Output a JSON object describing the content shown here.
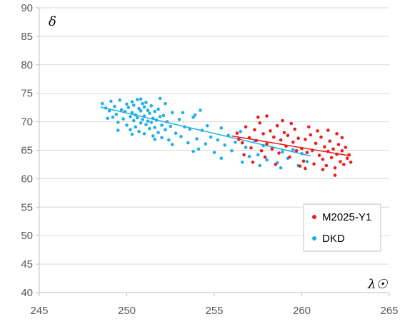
{
  "chart_data": {
    "type": "scatter",
    "xlabel": "λ☉",
    "ylabel": "δ",
    "xlim": [
      245,
      265
    ],
    "ylim": [
      40,
      90
    ],
    "x_ticks": [
      245,
      250,
      255,
      260,
      265
    ],
    "y_ticks": [
      40,
      45,
      50,
      55,
      60,
      65,
      70,
      75,
      80,
      85,
      90
    ],
    "grid": "horizontal",
    "legend": "bottom-right",
    "series": [
      {
        "name": "DKD",
        "color": "#1EAEEA",
        "trend": [
          [
            248.5,
            72.6
          ],
          [
            260.5,
            64.0
          ]
        ],
        "points": [
          [
            248.6,
            73.2
          ],
          [
            248.8,
            72.4
          ],
          [
            249.0,
            71.9
          ],
          [
            249.1,
            73.6
          ],
          [
            249.2,
            70.8
          ],
          [
            249.3,
            72.7
          ],
          [
            249.4,
            71.3
          ],
          [
            249.5,
            69.9
          ],
          [
            249.6,
            73.8
          ],
          [
            249.7,
            72.1
          ],
          [
            249.8,
            70.5
          ],
          [
            249.9,
            71.8
          ],
          [
            250.0,
            73.1
          ],
          [
            250.0,
            69.4
          ],
          [
            250.1,
            72.5
          ],
          [
            250.2,
            70.9
          ],
          [
            250.2,
            68.6
          ],
          [
            250.3,
            73.5
          ],
          [
            250.3,
            71.6
          ],
          [
            250.4,
            70.2
          ],
          [
            250.4,
            72.9
          ],
          [
            250.5,
            69.1
          ],
          [
            250.5,
            71.2
          ],
          [
            250.6,
            73.9
          ],
          [
            250.6,
            70.7
          ],
          [
            250.7,
            72.3
          ],
          [
            250.7,
            68.3
          ],
          [
            250.8,
            71.9
          ],
          [
            250.8,
            69.8
          ],
          [
            250.9,
            73.2
          ],
          [
            250.9,
            70.4
          ],
          [
            251.0,
            72.6
          ],
          [
            251.0,
            67.9
          ],
          [
            251.0,
            71.0
          ],
          [
            251.1,
            69.5
          ],
          [
            251.1,
            73.4
          ],
          [
            251.2,
            70.1
          ],
          [
            251.2,
            72.0
          ],
          [
            251.3,
            68.8
          ],
          [
            251.3,
            71.5
          ],
          [
            251.4,
            69.9
          ],
          [
            251.4,
            72.8
          ],
          [
            251.5,
            67.5
          ],
          [
            251.5,
            70.6
          ],
          [
            251.6,
            71.8
          ],
          [
            251.6,
            69.0
          ],
          [
            251.7,
            70.3
          ],
          [
            251.8,
            72.2
          ],
          [
            251.8,
            68.1
          ],
          [
            251.9,
            70.9
          ],
          [
            252.0,
            69.4
          ],
          [
            252.0,
            67.2
          ],
          [
            252.1,
            71.1
          ],
          [
            252.2,
            68.6
          ],
          [
            252.3,
            70.0
          ],
          [
            252.4,
            66.8
          ],
          [
            252.5,
            69.2
          ],
          [
            252.6,
            71.6
          ],
          [
            252.8,
            68.0
          ],
          [
            253.0,
            70.4
          ],
          [
            253.1,
            67.4
          ],
          [
            253.3,
            69.1
          ],
          [
            253.5,
            66.3
          ],
          [
            253.6,
            68.7
          ],
          [
            253.8,
            70.8
          ],
          [
            254.0,
            67.0
          ],
          [
            254.1,
            65.2
          ],
          [
            254.3,
            68.5
          ],
          [
            254.5,
            66.1
          ],
          [
            254.6,
            69.3
          ],
          [
            254.8,
            67.3
          ],
          [
            255.0,
            64.6
          ],
          [
            255.2,
            66.8
          ],
          [
            255.4,
            68.9
          ],
          [
            255.6,
            65.9
          ],
          [
            255.8,
            67.6
          ],
          [
            256.0,
            64.9
          ],
          [
            256.2,
            66.4
          ],
          [
            256.5,
            68.3
          ],
          [
            256.8,
            65.5
          ],
          [
            257.0,
            63.9
          ],
          [
            257.3,
            66.7
          ],
          [
            257.5,
            64.2
          ],
          [
            257.8,
            65.8
          ],
          [
            258.0,
            63.3
          ],
          [
            258.3,
            65.4
          ],
          [
            258.6,
            62.8
          ],
          [
            258.9,
            64.7
          ],
          [
            259.2,
            63.6
          ],
          [
            259.5,
            65.1
          ],
          [
            259.8,
            62.3
          ],
          [
            260.0,
            64.4
          ],
          [
            260.3,
            63.0
          ],
          [
            260.6,
            64.9
          ],
          [
            249.5,
            68.5
          ],
          [
            250.8,
            74.0
          ],
          [
            252.2,
            73.2
          ],
          [
            253.2,
            71.6
          ],
          [
            254.2,
            72.0
          ],
          [
            255.4,
            63.6
          ],
          [
            256.6,
            62.9
          ],
          [
            257.6,
            62.3
          ],
          [
            258.8,
            61.9
          ],
          [
            250.3,
            67.8
          ],
          [
            251.6,
            66.9
          ],
          [
            252.6,
            66.0
          ],
          [
            253.8,
            64.8
          ],
          [
            248.9,
            70.6
          ],
          [
            251.9,
            74.1
          ],
          [
            253.9,
            71.2
          ]
        ]
      },
      {
        "name": "M2025-Y1",
        "color": "#EE1C1C",
        "trend": [
          [
            256.0,
            67.5
          ],
          [
            262.8,
            64.0
          ]
        ],
        "points": [
          [
            256.3,
            68.0
          ],
          [
            256.6,
            66.3
          ],
          [
            256.8,
            69.1
          ],
          [
            257.0,
            67.2
          ],
          [
            257.1,
            65.4
          ],
          [
            257.3,
            68.6
          ],
          [
            257.4,
            66.7
          ],
          [
            257.6,
            69.8
          ],
          [
            257.7,
            64.9
          ],
          [
            257.8,
            67.9
          ],
          [
            258.0,
            66.1
          ],
          [
            258.0,
            71.0
          ],
          [
            258.2,
            68.4
          ],
          [
            258.3,
            65.2
          ],
          [
            258.4,
            67.3
          ],
          [
            258.6,
            69.3
          ],
          [
            258.7,
            64.5
          ],
          [
            258.8,
            66.8
          ],
          [
            259.0,
            68.1
          ],
          [
            259.1,
            65.7
          ],
          [
            259.2,
            67.6
          ],
          [
            259.3,
            63.8
          ],
          [
            259.5,
            66.4
          ],
          [
            259.6,
            68.7
          ],
          [
            259.7,
            64.9
          ],
          [
            259.8,
            67.1
          ],
          [
            260.0,
            65.3
          ],
          [
            260.1,
            63.1
          ],
          [
            260.2,
            66.9
          ],
          [
            260.3,
            64.6
          ],
          [
            260.5,
            67.7
          ],
          [
            260.6,
            65.0
          ],
          [
            260.7,
            62.6
          ],
          [
            260.8,
            66.2
          ],
          [
            261.0,
            64.1
          ],
          [
            261.1,
            67.3
          ],
          [
            261.2,
            63.4
          ],
          [
            261.3,
            65.6
          ],
          [
            261.4,
            62.3
          ],
          [
            261.5,
            64.8
          ],
          [
            261.6,
            66.6
          ],
          [
            261.7,
            63.7
          ],
          [
            261.8,
            65.2
          ],
          [
            261.9,
            61.9
          ],
          [
            262.0,
            64.3
          ],
          [
            262.1,
            66.0
          ],
          [
            262.2,
            63.0
          ],
          [
            262.3,
            64.9
          ],
          [
            262.4,
            62.5
          ],
          [
            262.5,
            65.5
          ],
          [
            262.6,
            63.6
          ],
          [
            262.7,
            64.2
          ],
          [
            262.8,
            62.9
          ],
          [
            261.9,
            60.6
          ],
          [
            262.3,
            67.2
          ],
          [
            260.9,
            68.4
          ],
          [
            259.4,
            69.7
          ],
          [
            257.5,
            70.8
          ],
          [
            256.7,
            64.2
          ],
          [
            257.9,
            63.8
          ],
          [
            258.5,
            62.5
          ],
          [
            259.9,
            62.2
          ],
          [
            261.2,
            61.6
          ],
          [
            260.4,
            69.1
          ],
          [
            258.9,
            70.2
          ],
          [
            262.0,
            67.9
          ],
          [
            261.5,
            68.5
          ],
          [
            260.2,
            61.8
          ],
          [
            256.4,
            66.9
          ],
          [
            257.2,
            62.9
          ]
        ]
      }
    ]
  }
}
